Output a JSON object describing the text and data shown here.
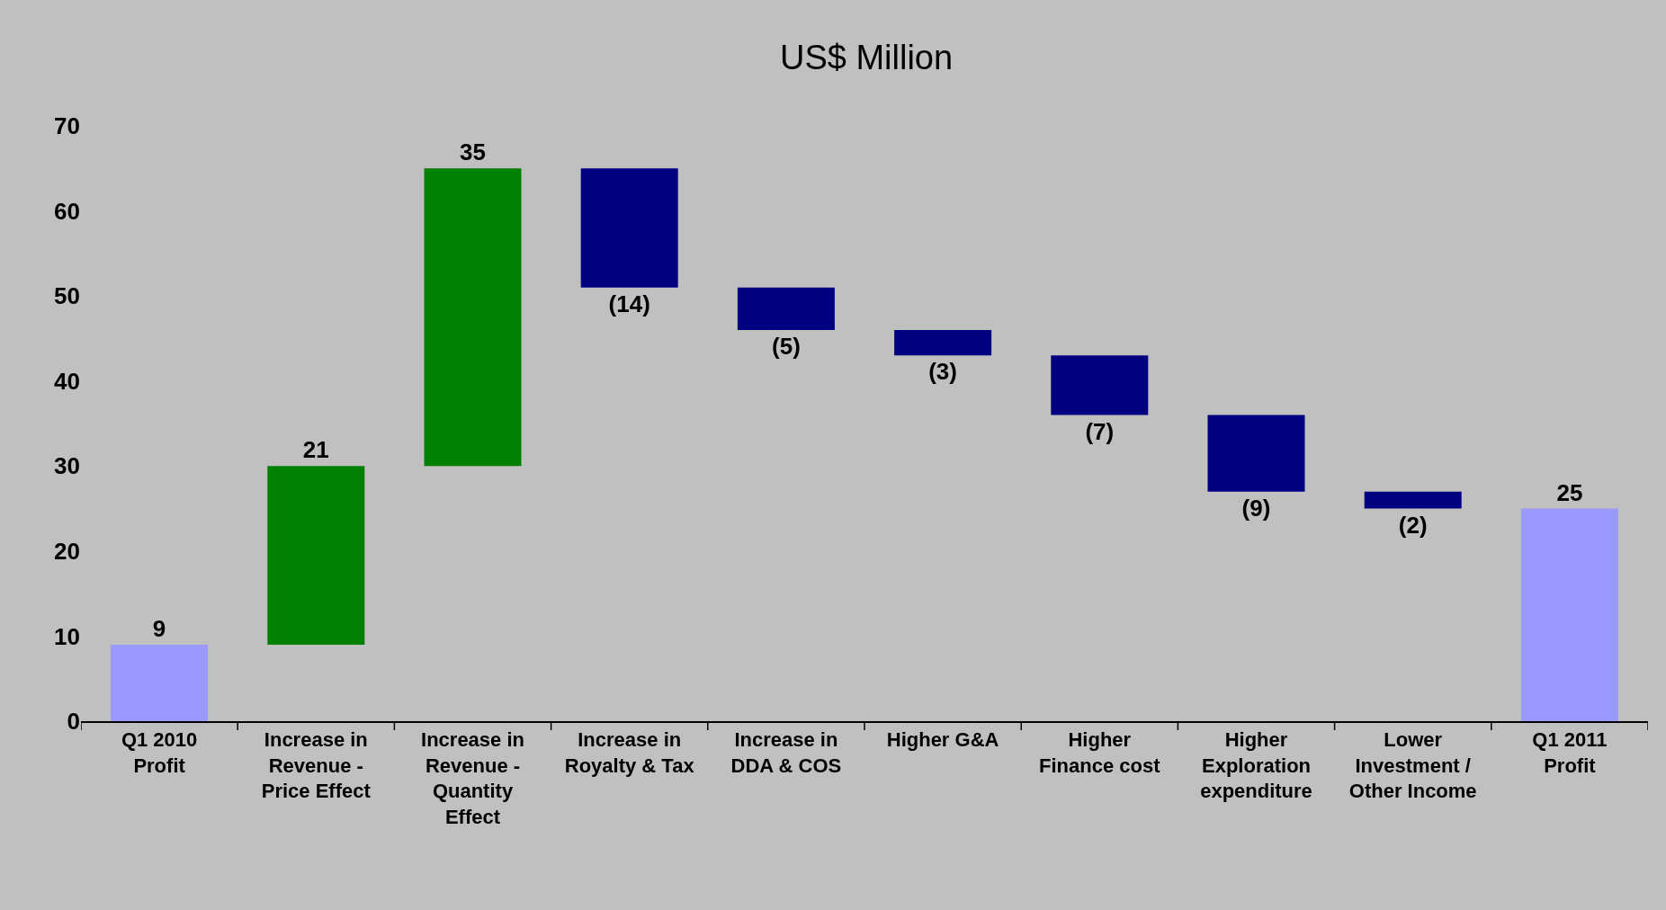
{
  "chart_data": {
    "type": "bar",
    "title": "US$ Million",
    "categories": [
      "Q1 2010 Profit",
      "Increase in Revenue - Price Effect",
      "Increase in Revenue - Quantity Effect",
      "Increase in Royalty & Tax",
      "Increase in DDA & COS",
      "Higher G&A",
      "Higher Finance cost",
      "Higher Exploration expenditure",
      "Lower Investment / Other Income",
      "Q1 2011 Profit"
    ],
    "values": [
      9,
      21,
      35,
      -14,
      -5,
      -3,
      -7,
      -9,
      -2,
      25
    ],
    "base": [
      0,
      9,
      30,
      65,
      51,
      46,
      43,
      36,
      27,
      0
    ],
    "value_labels": [
      "9",
      "21",
      "35",
      "(14)",
      "(5)",
      "(3)",
      "(7)",
      "(9)",
      "(2)",
      "25"
    ],
    "colors": [
      "#9999ff",
      "#008000",
      "#008000",
      "#000080",
      "#000080",
      "#000080",
      "#000080",
      "#000080",
      "#000080",
      "#9999ff"
    ],
    "ylim": [
      0,
      70
    ],
    "yticks": [
      0,
      10,
      20,
      30,
      40,
      50,
      60,
      70
    ],
    "grid": false
  }
}
